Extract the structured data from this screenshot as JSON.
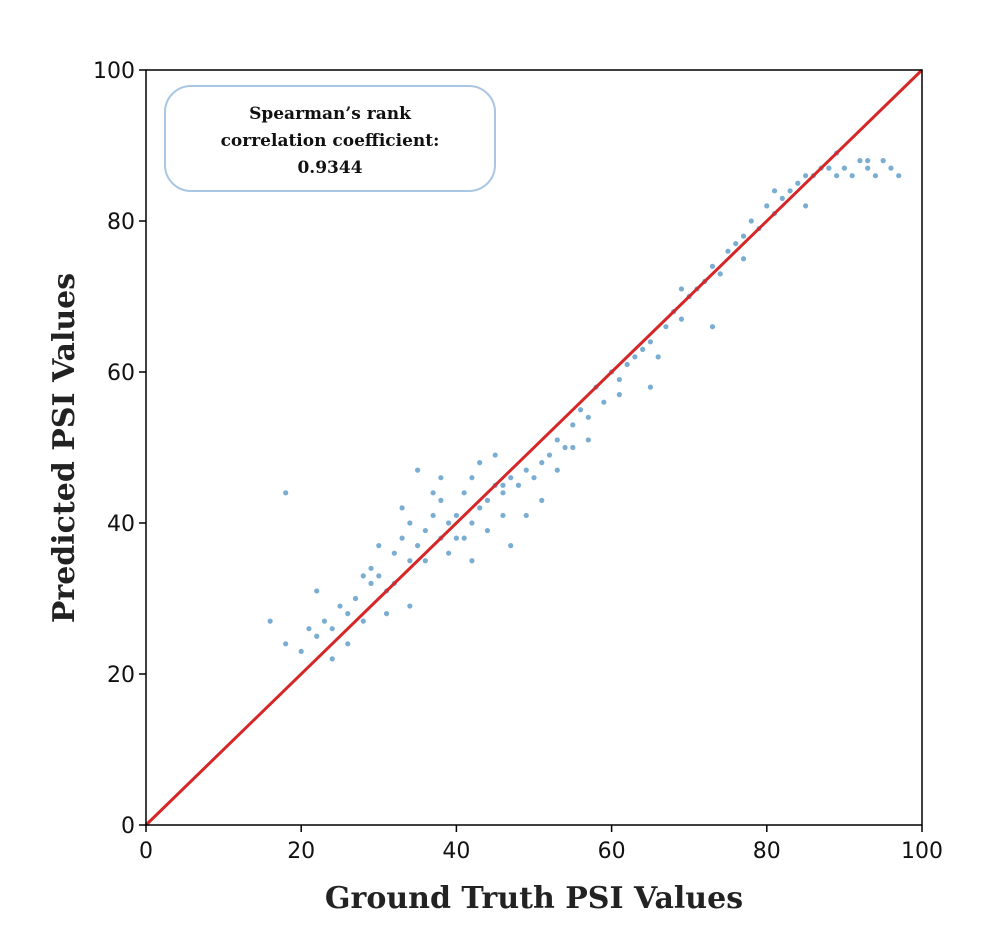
{
  "chart_data": {
    "type": "scatter",
    "title": "",
    "xlabel": "Ground Truth PSI Values",
    "ylabel": "Predicted PSI Values",
    "xlim": [
      0,
      100
    ],
    "ylim": [
      0,
      100
    ],
    "xticks": [
      "0",
      "20",
      "40",
      "60",
      "80",
      "100"
    ],
    "yticks": [
      "0",
      "20",
      "40",
      "60",
      "80",
      "100"
    ],
    "grid": false,
    "annotation": {
      "lines": [
        "Spearman’s rank",
        "correlation coefficient:",
        "0.9344"
      ],
      "placement": "top-left"
    },
    "series": [
      {
        "name": "predictions",
        "kind": "scatter",
        "color": "#1f77b4",
        "x": [
          16,
          18,
          18,
          20,
          21,
          22,
          23,
          24,
          25,
          26,
          27,
          28,
          28,
          29,
          30,
          30,
          31,
          32,
          32,
          33,
          34,
          34,
          35,
          36,
          36,
          37,
          38,
          38,
          39,
          40,
          40,
          41,
          42,
          42,
          43,
          44,
          44,
          45,
          46,
          46,
          47,
          48,
          49,
          50,
          51,
          52,
          53,
          54,
          55,
          56,
          57,
          58,
          59,
          60,
          61,
          62,
          63,
          64,
          65,
          66,
          67,
          68,
          69,
          70,
          71,
          72,
          73,
          74,
          75,
          76,
          77,
          78,
          79,
          80,
          81,
          82,
          83,
          84,
          85,
          86,
          87,
          88,
          89,
          90,
          91,
          92,
          93,
          94,
          95,
          96,
          97,
          22,
          26,
          33,
          37,
          41,
          45,
          49,
          31,
          35,
          39,
          43,
          47,
          51,
          55,
          24,
          29,
          34,
          38,
          42,
          46,
          53,
          57,
          61,
          65,
          69,
          73,
          77,
          81,
          85,
          89,
          93
        ],
        "y": [
          27,
          44,
          24,
          23,
          26,
          25,
          27,
          26,
          29,
          28,
          30,
          33,
          27,
          34,
          33,
          37,
          31,
          36,
          32,
          38,
          35,
          40,
          37,
          39,
          35,
          41,
          38,
          43,
          40,
          41,
          38,
          44,
          40,
          46,
          42,
          43,
          39,
          45,
          44,
          41,
          46,
          45,
          47,
          46,
          48,
          49,
          51,
          50,
          53,
          55,
          54,
          58,
          56,
          60,
          59,
          61,
          62,
          63,
          64,
          62,
          66,
          68,
          67,
          70,
          71,
          72,
          74,
          73,
          76,
          77,
          78,
          80,
          79,
          82,
          81,
          83,
          84,
          85,
          86,
          86,
          87,
          87,
          86,
          87,
          86,
          88,
          87,
          86,
          88,
          87,
          86,
          31,
          24,
          42,
          44,
          38,
          49,
          41,
          28,
          47,
          36,
          48,
          37,
          43,
          50,
          22,
          32,
          29,
          46,
          35,
          45,
          47,
          51,
          57,
          58,
          71,
          66,
          75,
          84,
          82,
          89,
          88
        ]
      },
      {
        "name": "identity line",
        "kind": "line",
        "color": "#d62728",
        "x": [
          0,
          100
        ],
        "y": [
          0,
          100
        ]
      }
    ]
  }
}
